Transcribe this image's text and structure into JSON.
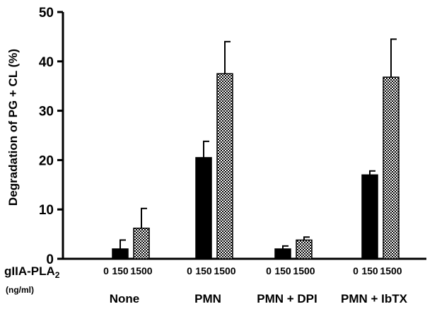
{
  "chart_data": {
    "type": "bar",
    "ylabel": "Degradation of PG + CL (%)",
    "ylim": [
      0,
      50
    ],
    "yticks": [
      "0",
      "10",
      "20",
      "30",
      "40",
      "50"
    ],
    "xlabel": {
      "main": "gIIA-PLA",
      "subscript": "2",
      "unit": "(ng/ml)"
    },
    "groups": [
      {
        "name": "None",
        "doses": [
          "0",
          "150",
          "1500"
        ],
        "bars": [
          {
            "dose": "150",
            "value": 2.0,
            "error": 1.8
          },
          {
            "dose": "1500",
            "value": 6.2,
            "error": 4.0
          }
        ]
      },
      {
        "name": "PMN",
        "doses": [
          "0",
          "150",
          "1500"
        ],
        "bars": [
          {
            "dose": "150",
            "value": 20.5,
            "error": 3.3
          },
          {
            "dose": "1500",
            "value": 37.5,
            "error": 6.5
          }
        ]
      },
      {
        "name": "PMN + DPI",
        "doses": [
          "0",
          "150",
          "1500"
        ],
        "bars": [
          {
            "dose": "150",
            "value": 2.0,
            "error": 0.6
          },
          {
            "dose": "1500",
            "value": 3.8,
            "error": 0.6
          }
        ]
      },
      {
        "name": "PMN + IbTX",
        "doses": [
          "0",
          "150",
          "1500"
        ],
        "bars": [
          {
            "dose": "150",
            "value": 17.0,
            "error": 0.8
          },
          {
            "dose": "1500",
            "value": 36.8,
            "error": 7.7
          }
        ]
      }
    ],
    "bar_styles": {
      "150": "solid",
      "1500": "checkered"
    },
    "colors": {
      "solid": "#000000",
      "checker_dark": "#000000",
      "checker_light": "#ffffff"
    },
    "grid": false,
    "legend": "none"
  }
}
